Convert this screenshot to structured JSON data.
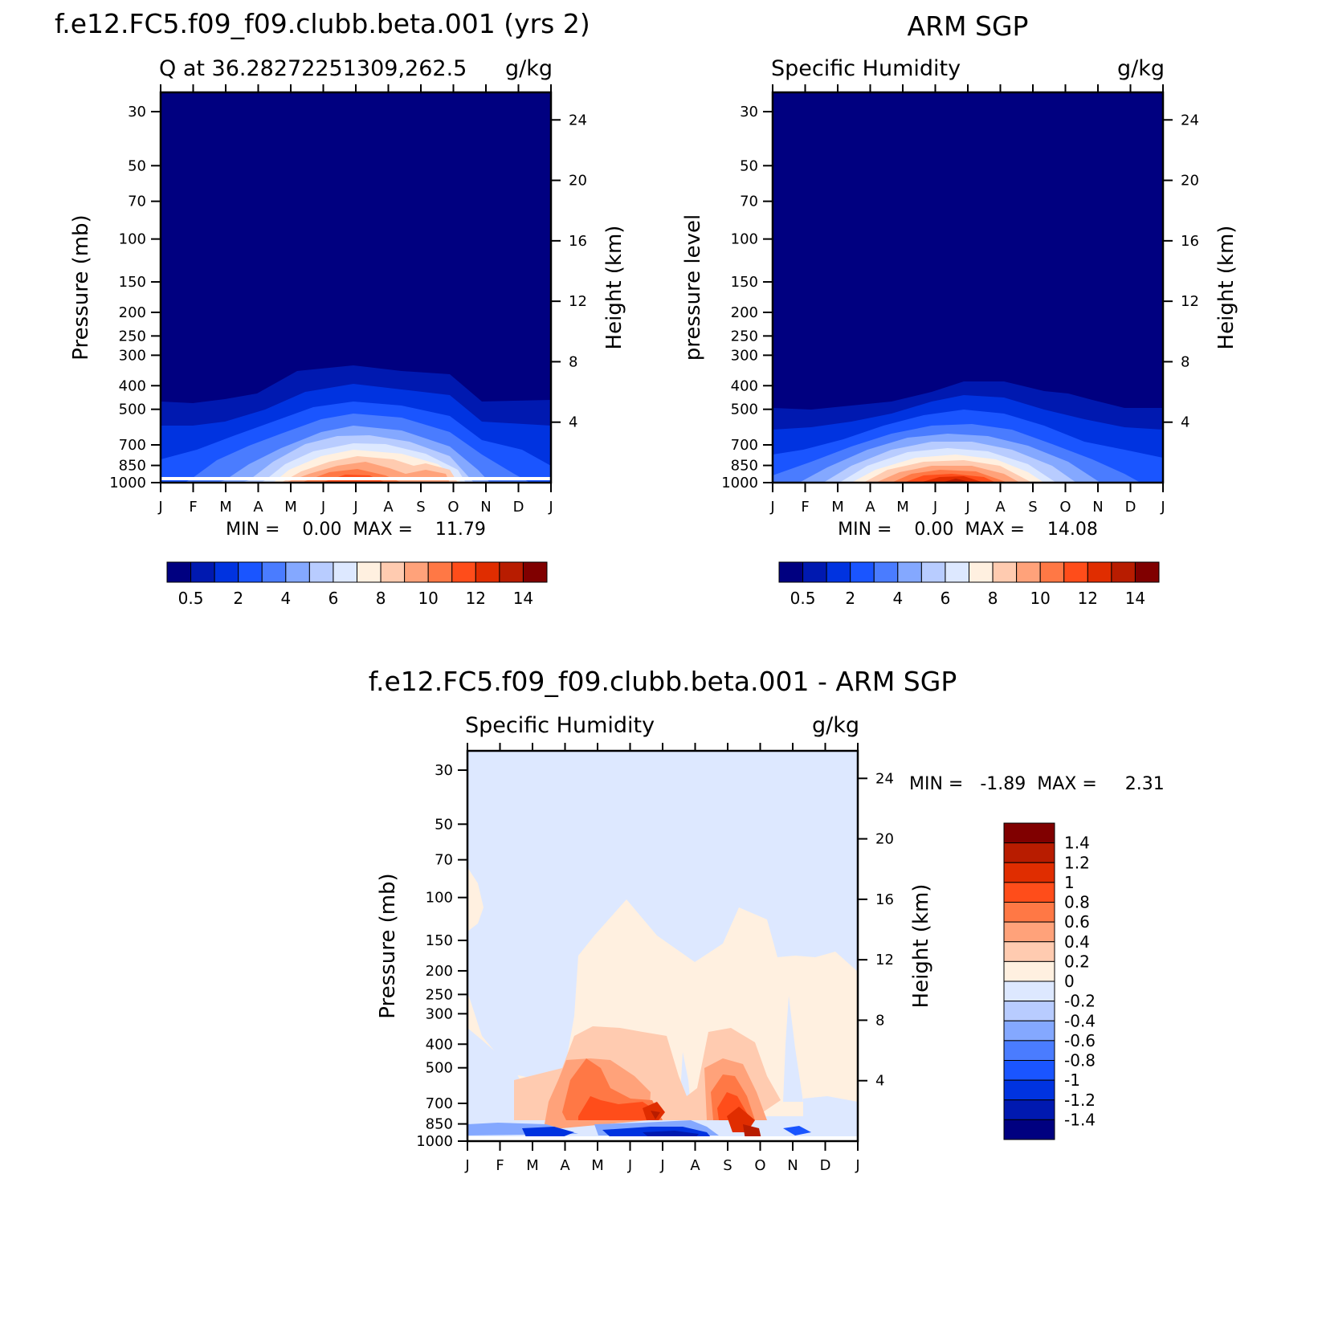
{
  "chart_data": [
    {
      "type": "heatmap",
      "title": "f.e12.FC5.f09_f09.clubb.beta.001 (yrs 2)",
      "subtitle_left": "Q at 36.28272251309,262.5",
      "subtitle_right": "g/kg",
      "ylabel": "Pressure (mb)",
      "ylabel_right": "Height (km)",
      "x_categories": [
        "J",
        "F",
        "M",
        "A",
        "M",
        "J",
        "J",
        "A",
        "S",
        "O",
        "N",
        "D",
        "J"
      ],
      "y_ticks": [
        "30",
        "50",
        "70",
        "100",
        "150",
        "200",
        "250",
        "300",
        "400",
        "500",
        "700",
        "850",
        "1000"
      ],
      "y_values": [
        30,
        50,
        70,
        100,
        150,
        200,
        250,
        300,
        400,
        500,
        700,
        850,
        1000
      ],
      "height_ticks": [
        "24",
        "20",
        "16",
        "12",
        "8",
        "4"
      ],
      "height_values": [
        24,
        20,
        16,
        12,
        8,
        4
      ],
      "stats": "MIN =    0.00  MAX =    11.79",
      "min": 0.0,
      "max": 11.79,
      "colorbar": {
        "labels": [
          "0.5",
          "2",
          "4",
          "6",
          "8",
          "10",
          "12",
          "14"
        ],
        "colors": [
          "#000080",
          "#0019b0",
          "#0033e0",
          "#1a55ff",
          "#4a7cff",
          "#84a8ff",
          "#b8ccff",
          "#dde8ff",
          "#fff0e0",
          "#ffcbb0",
          "#ffa27a",
          "#ff7845",
          "#ff4d1a",
          "#e02d00",
          "#b81c00",
          "#800000"
        ]
      }
    },
    {
      "type": "heatmap",
      "title": "ARM SGP",
      "subtitle_left": "Specific Humidity",
      "subtitle_right": "g/kg",
      "ylabel": "pressure level",
      "ylabel_right": "Height (km)",
      "x_categories": [
        "J",
        "F",
        "M",
        "A",
        "M",
        "J",
        "J",
        "A",
        "S",
        "O",
        "N",
        "D",
        "J"
      ],
      "y_ticks": [
        "30",
        "50",
        "70",
        "100",
        "150",
        "200",
        "250",
        "300",
        "400",
        "500",
        "700",
        "850",
        "1000"
      ],
      "y_values": [
        30,
        50,
        70,
        100,
        150,
        200,
        250,
        300,
        400,
        500,
        700,
        850,
        1000
      ],
      "height_ticks": [
        "24",
        "20",
        "16",
        "12",
        "8",
        "4"
      ],
      "height_values": [
        24,
        20,
        16,
        12,
        8,
        4
      ],
      "stats": "MIN =    0.00  MAX =    14.08",
      "min": 0.0,
      "max": 14.08,
      "colorbar": {
        "labels": [
          "0.5",
          "2",
          "4",
          "6",
          "8",
          "10",
          "12",
          "14"
        ],
        "colors": [
          "#000080",
          "#0019b0",
          "#0033e0",
          "#1a55ff",
          "#4a7cff",
          "#84a8ff",
          "#b8ccff",
          "#dde8ff",
          "#fff0e0",
          "#ffcbb0",
          "#ffa27a",
          "#ff7845",
          "#ff4d1a",
          "#e02d00",
          "#b81c00",
          "#800000"
        ]
      }
    },
    {
      "type": "heatmap",
      "title": "f.e12.FC5.f09_f09.clubb.beta.001 - ARM SGP",
      "subtitle_left": "Specific Humidity",
      "subtitle_right": "g/kg",
      "ylabel": "Pressure (mb)",
      "ylabel_right": "Height (km)",
      "x_categories": [
        "J",
        "F",
        "M",
        "A",
        "M",
        "J",
        "J",
        "A",
        "S",
        "O",
        "N",
        "D",
        "J"
      ],
      "y_ticks": [
        "30",
        "50",
        "70",
        "100",
        "150",
        "200",
        "250",
        "300",
        "400",
        "500",
        "700",
        "850",
        "1000"
      ],
      "y_values": [
        30,
        50,
        70,
        100,
        150,
        200,
        250,
        300,
        400,
        500,
        700,
        850,
        1000
      ],
      "height_ticks": [
        "24",
        "20",
        "16",
        "12",
        "8",
        "4"
      ],
      "height_values": [
        24,
        20,
        16,
        12,
        8,
        4
      ],
      "stats": "MIN =   -1.89  MAX =     2.31",
      "min": -1.89,
      "max": 2.31,
      "colorbar": {
        "labels": [
          "1.4",
          "1.2",
          "1",
          "0.8",
          "0.6",
          "0.4",
          "0.2",
          "0",
          "-0.2",
          "-0.4",
          "-0.6",
          "-0.8",
          "-1",
          "-1.2",
          "-1.4"
        ],
        "colors": [
          "#800000",
          "#b81c00",
          "#e02d00",
          "#ff4d1a",
          "#ff7845",
          "#ffa27a",
          "#ffcbb0",
          "#fff0e0",
          "#dde8ff",
          "#b8ccff",
          "#84a8ff",
          "#4a7cff",
          "#1a55ff",
          "#0033e0",
          "#0019b0",
          "#000080"
        ]
      }
    }
  ]
}
